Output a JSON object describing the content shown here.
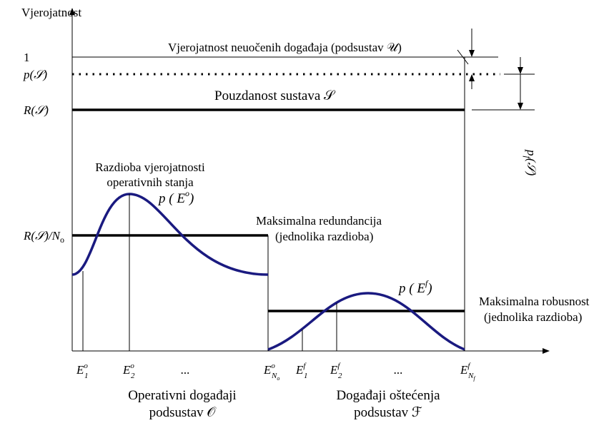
{
  "axis": {
    "y_label": "Vjerojatnost"
  },
  "levels": {
    "one": "1",
    "p_s": "p(𝒮)",
    "r_s": "R(𝒮)",
    "r_s_n": "R(𝒮)/N",
    "r_s_n_sub": "o"
  },
  "annotations": {
    "unobserved": "Vjerojatnost neuočenih događaja (podsustav 𝒰)",
    "reliability": "Pouzdanost sustava 𝒮",
    "distribution": [
      "Razdioba vjerojatnosti",
      "operativnih stanja"
    ],
    "p_eo": {
      "base": "p ( E",
      "sup": "o",
      ")": ")"
    },
    "redundancy": [
      "Maksimalna redundancija",
      "(jednolika razdioba)"
    ],
    "p_ef": {
      "base": "p ( E",
      "sup": "f",
      ")": ")"
    },
    "robustness": [
      "Maksimalna robusnost",
      "(jednolika razdioba)"
    ],
    "pf": {
      "base": "p",
      "sub": "f",
      "rest": "(𝒮)"
    }
  },
  "x_labels": [
    {
      "base": "E",
      "sup": "o",
      "sub": "1"
    },
    {
      "base": "E",
      "sup": "o",
      "sub": "2"
    },
    {
      "base": "..."
    },
    {
      "base": "E",
      "sup": "o",
      "sub": "N",
      "sub2": "o"
    },
    {
      "base": "E",
      "sup": "f",
      "sub": "1"
    },
    {
      "base": "E",
      "sup": "f",
      "sub": "2"
    },
    {
      "base": "..."
    },
    {
      "base": "E",
      "sup": "f",
      "sub": "N",
      "sub2": "f"
    }
  ],
  "groups": [
    [
      "Operativni događaji",
      "podsustav 𝒪"
    ],
    [
      "Događaji oštećenja",
      "podsustav ℱ"
    ]
  ]
}
